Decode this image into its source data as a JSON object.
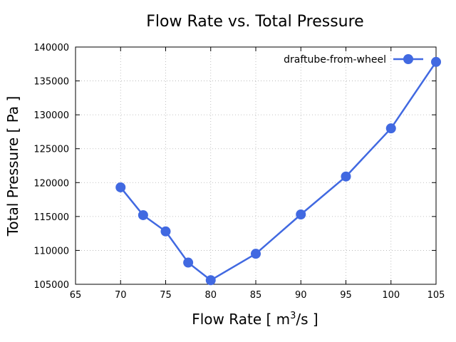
{
  "chart_data": {
    "type": "line",
    "title": "Flow Rate vs. Total Pressure",
    "xlabel_prefix": "Flow Rate [ m",
    "xlabel_sup": "3",
    "xlabel_suffix": "/s ]",
    "ylabel": "Total Pressure [ Pa ]",
    "xlim": [
      65,
      105
    ],
    "ylim": [
      105000,
      140000
    ],
    "xticks": [
      "65",
      "70",
      "75",
      "80",
      "85",
      "90",
      "95",
      "100",
      "105"
    ],
    "yticks": [
      "105000",
      "110000",
      "115000",
      "120000",
      "125000",
      "130000",
      "135000",
      "140000"
    ],
    "grid": true,
    "legend_position": "top-right",
    "series": [
      {
        "name": "draftube-from-wheel",
        "color": "#4169e1",
        "marker": "circle",
        "x": [
          70,
          72.5,
          75,
          77.5,
          80,
          85,
          90,
          95,
          100,
          105
        ],
        "y": [
          119300,
          115200,
          112800,
          108200,
          105600,
          109500,
          115300,
          120900,
          128000,
          137800
        ]
      }
    ]
  }
}
